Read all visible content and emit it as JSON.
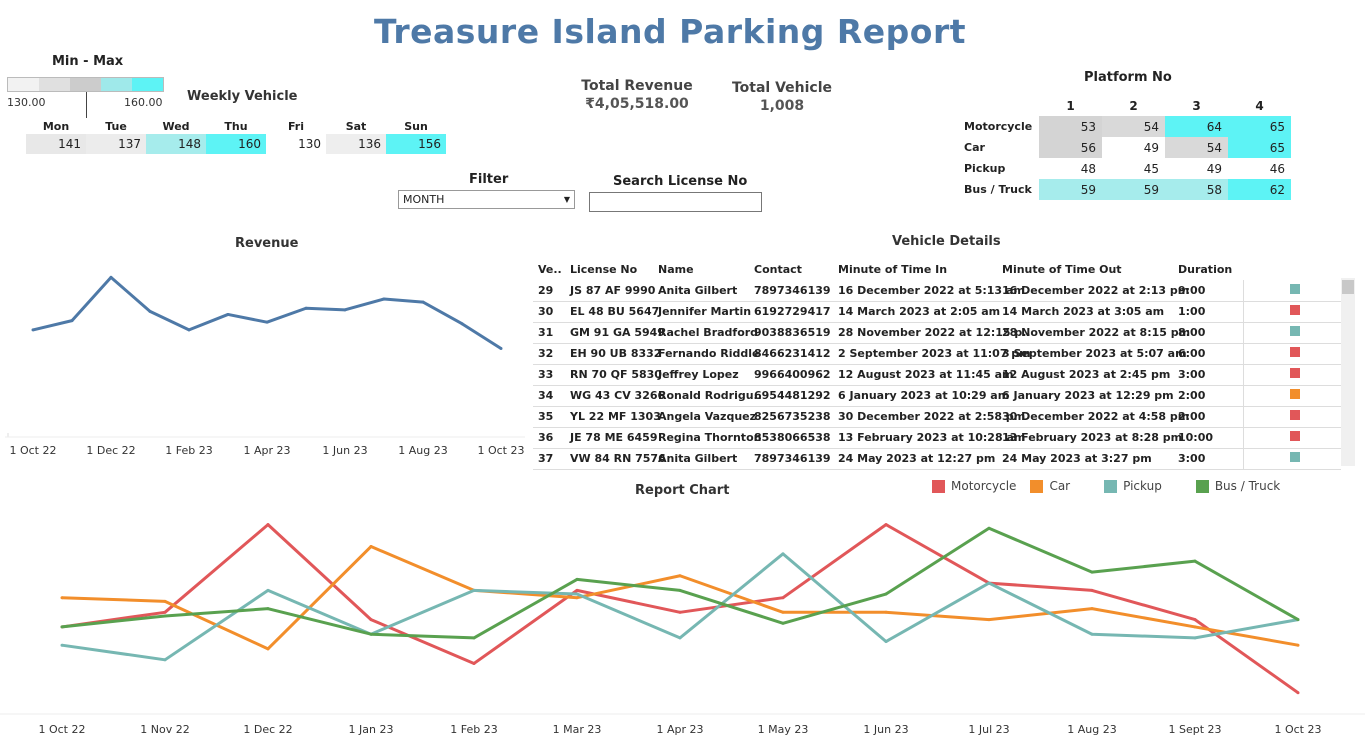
{
  "title": "Treasure Island Parking Report",
  "min_max": {
    "title": "Min - Max",
    "min_label": "130.00",
    "max_label": "160.00",
    "colors": [
      "#f2f2f2",
      "#e0e0e0",
      "#cccccc",
      "#9fe9ea",
      "#5df3f5"
    ]
  },
  "weekly": {
    "title": "Weekly Vehicle",
    "days": [
      {
        "day": "Mon",
        "value": "141",
        "color": "#e8e8e8"
      },
      {
        "day": "Tue",
        "value": "137",
        "color": "#ececec"
      },
      {
        "day": "Wed",
        "value": "148",
        "color": "#a6ecec"
      },
      {
        "day": "Thu",
        "value": "160",
        "color": "#5df3f5"
      },
      {
        "day": "Fri",
        "value": "130",
        "color": "#ffffff"
      },
      {
        "day": "Sat",
        "value": "136",
        "color": "#eeeeee"
      },
      {
        "day": "Sun",
        "value": "156",
        "color": "#5df3f5"
      }
    ]
  },
  "kpi": {
    "revenue_label": "Total Revenue",
    "revenue_value": "₹4,05,518.00",
    "vehicle_label": "Total Vehicle",
    "vehicle_value": "1,008"
  },
  "filter": {
    "label": "Filter",
    "value": "MONTH",
    "search_label": "Search License No",
    "search_value": ""
  },
  "platform": {
    "title": "Platform No",
    "columns": [
      "1",
      "2",
      "3",
      "4"
    ],
    "rows": [
      {
        "label": "Motorcycle",
        "values": [
          "53",
          "54",
          "64",
          "65"
        ],
        "colors": [
          "#d4d4d4",
          "#d9d9d9",
          "#5df3f5",
          "#5df3f5"
        ]
      },
      {
        "label": "Car",
        "values": [
          "56",
          "49",
          "54",
          "65"
        ],
        "colors": [
          "#d4d4d4",
          "#ffffff",
          "#d9d9d9",
          "#5df3f5"
        ]
      },
      {
        "label": "Pickup",
        "values": [
          "48",
          "45",
          "49",
          "46"
        ],
        "colors": [
          "#ffffff",
          "#ffffff",
          "#ffffff",
          "#ffffff"
        ]
      },
      {
        "label": "Bus / Truck",
        "values": [
          "59",
          "59",
          "58",
          "62"
        ],
        "colors": [
          "#a6ecec",
          "#a6ecec",
          "#a6ecec",
          "#5df3f5"
        ]
      }
    ]
  },
  "revenue": {
    "title": "Revenue",
    "x_labels": [
      "1 Oct 22",
      "1 Dec 22",
      "1 Feb 23",
      "1 Apr 23",
      "1 Jun 23",
      "1 Aug 23",
      "1 Oct 23"
    ],
    "color": "#4e79a7"
  },
  "vehicle_details": {
    "title": "Vehicle Details",
    "headers": [
      "Ve..",
      "License No",
      "Name",
      "Contact",
      "Minute of Time In",
      "Minute of Time Out",
      "Duration",
      ""
    ],
    "rows": [
      {
        "id": "29",
        "license": "JS 87 AF 9990",
        "name": "Anita Gilbert",
        "contact": "7897346139",
        "time_in": "16 December 2022 at 5:13 am",
        "time_out": "16 December 2022 at 2:13 pm",
        "duration": "9:00",
        "color": "#76b7b2"
      },
      {
        "id": "30",
        "license": "EL 48 BU 5647",
        "name": "Jennifer Martin",
        "contact": "6192729417",
        "time_in": "14 March 2023 at 2:05 am",
        "time_out": "14 March 2023 at 3:05 am",
        "duration": "1:00",
        "color": "#e15759"
      },
      {
        "id": "31",
        "license": "GM 91 GA 5949",
        "name": "Rachel Bradford",
        "contact": "9038836519",
        "time_in": "28 November 2022 at 12:15 p..",
        "time_out": "28 November 2022 at 8:15 pm",
        "duration": "8:00",
        "color": "#76b7b2"
      },
      {
        "id": "32",
        "license": "EH 90 UB 8332",
        "name": "Fernando Riddle",
        "contact": "8466231412",
        "time_in": "2 September 2023 at 11:07 pm",
        "time_out": "3 September 2023 at 5:07 am",
        "duration": "6:00",
        "color": "#e15759"
      },
      {
        "id": "33",
        "license": "RN 70 QF 5830",
        "name": "Jeffrey Lopez",
        "contact": "9966400962",
        "time_in": "12 August 2023 at 11:45 am",
        "time_out": "12 August 2023 at 2:45 pm",
        "duration": "3:00",
        "color": "#e15759"
      },
      {
        "id": "34",
        "license": "WG 43 CV 3266",
        "name": "Ronald Rodrigu..",
        "contact": "6954481292",
        "time_in": "6 January 2023 at 10:29 am",
        "time_out": "6 January 2023 at 12:29 pm",
        "duration": "2:00",
        "color": "#f28e2b"
      },
      {
        "id": "35",
        "license": "YL 22 MF 1303",
        "name": "Angela Vazquez",
        "contact": "8256735238",
        "time_in": "30 December 2022 at 2:58 pm",
        "time_out": "30 December 2022 at 4:58 pm",
        "duration": "2:00",
        "color": "#e15759"
      },
      {
        "id": "36",
        "license": "JE 78 ME 6459",
        "name": "Regina Thornton",
        "contact": "8538066538",
        "time_in": "13 February 2023 at 10:28 am",
        "time_out": "13 February 2023 at 8:28 pm",
        "duration": "10:00",
        "color": "#e15759"
      },
      {
        "id": "37",
        "license": "VW 84 RN 7576",
        "name": "Anita Gilbert",
        "contact": "7897346139",
        "time_in": "24 May 2023 at 12:27 pm",
        "time_out": "24 May 2023 at 3:27 pm",
        "duration": "3:00",
        "color": "#76b7b2"
      }
    ]
  },
  "report": {
    "title": "Report Chart",
    "x_labels": [
      "1 Oct 22",
      "1 Nov 22",
      "1 Dec 22",
      "1 Jan 23",
      "1 Feb 23",
      "1 Mar 23",
      "1 Apr 23",
      "1 May 23",
      "1 Jun 23",
      "1 Jul 23",
      "1 Aug 23",
      "1 Sept 23",
      "1 Oct 23"
    ],
    "legend": [
      {
        "name": "Motorcycle",
        "color": "#e15759"
      },
      {
        "name": "Car",
        "color": "#f28e2b"
      },
      {
        "name": "Pickup",
        "color": "#76b7b2"
      },
      {
        "name": "Bus / Truck",
        "color": "#59a14f"
      }
    ]
  },
  "chart_data": [
    {
      "type": "line",
      "title": "Revenue",
      "x": [
        "1 Oct 22",
        "1 Nov 22",
        "1 Dec 22",
        "1 Jan 23",
        "1 Feb 23",
        "1 Mar 23",
        "1 Apr 23",
        "1 May 23",
        "1 Jun 23",
        "1 Jul 23",
        "1 Aug 23",
        "1 Sept 23",
        "1 Oct 23"
      ],
      "x_tick_labels": [
        "1 Oct 22",
        "1 Dec 22",
        "1 Feb 23",
        "1 Apr 23",
        "1 Jun 23",
        "1 Aug 23",
        "1 Oct 23"
      ],
      "series": [
        {
          "values": [
            34000,
            37000,
            51000,
            40000,
            34000,
            39000,
            36500,
            41000,
            40500,
            44000,
            43000,
            36000,
            28000
          ],
          "color": "#4e79a7"
        }
      ],
      "ylim": [
        0,
        55000
      ],
      "grid": false
    },
    {
      "type": "line",
      "title": "Report Chart",
      "x": [
        "1 Oct 22",
        "1 Nov 22",
        "1 Dec 22",
        "1 Jan 23",
        "1 Feb 23",
        "1 Mar 23",
        "1 Apr 23",
        "1 May 23",
        "1 Jun 23",
        "1 Jul 23",
        "1 Aug 23",
        "1 Sept 23",
        "1 Oct 23"
      ],
      "series": [
        {
          "name": "Motorcycle",
          "color": "#e15759",
          "values": [
            20,
            22,
            34,
            21,
            15,
            25,
            22,
            24,
            34,
            26,
            25,
            21,
            11
          ]
        },
        {
          "name": "Car",
          "color": "#f28e2b",
          "values": [
            24,
            23.5,
            17,
            31,
            25,
            24,
            27,
            22,
            22,
            21,
            22.5,
            20,
            17.5
          ]
        },
        {
          "name": "Pickup",
          "color": "#76b7b2",
          "values": [
            17.5,
            15.5,
            25,
            19,
            25,
            24.5,
            18.5,
            30,
            18,
            26,
            19,
            18.5,
            21
          ]
        },
        {
          "name": "Bus / Truck",
          "color": "#59a14f",
          "values": [
            20,
            21.5,
            22.5,
            19,
            18.5,
            26.5,
            25,
            20.5,
            24.5,
            33.5,
            27.5,
            29,
            21
          ]
        }
      ],
      "ylim": [
        10,
        36
      ],
      "legend": "top-right",
      "grid": false
    }
  ]
}
